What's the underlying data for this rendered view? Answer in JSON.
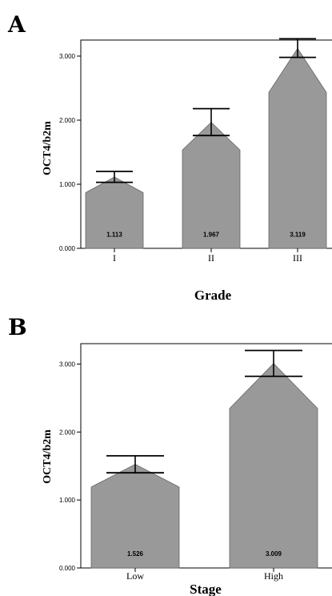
{
  "chart_data": [
    {
      "panel": "A",
      "type": "bar",
      "xlabel": "Grade",
      "ylabel": "OCT4/b2m",
      "categories": [
        "I",
        "II",
        "III"
      ],
      "values": [
        1.113,
        1.967,
        3.119
      ],
      "value_labels": [
        "1.113",
        "1.967",
        "3.119"
      ],
      "error_upper": [
        1.2,
        2.18,
        3.27
      ],
      "error_lower": [
        1.03,
        1.76,
        2.98
      ],
      "ylim": [
        0,
        3.25
      ],
      "yticks": [
        0,
        1,
        2,
        3
      ],
      "ytick_labels": [
        "0.000",
        "1.000",
        "2.000",
        "3.000"
      ],
      "bar_color": "#999999",
      "grid": false
    },
    {
      "panel": "B",
      "type": "bar",
      "xlabel": "Stage",
      "ylabel": "OCT4/b2m",
      "categories": [
        "Low",
        "High"
      ],
      "values": [
        1.526,
        3.009
      ],
      "value_labels": [
        "1.526",
        "3.009"
      ],
      "error_upper": [
        1.65,
        3.2
      ],
      "error_lower": [
        1.4,
        2.82
      ],
      "ylim": [
        0,
        3.3
      ],
      "yticks": [
        0,
        1,
        2,
        3
      ],
      "ytick_labels": [
        "0.000",
        "1.000",
        "2.000",
        "3.000"
      ],
      "bar_color": "#999999",
      "grid": false
    }
  ]
}
